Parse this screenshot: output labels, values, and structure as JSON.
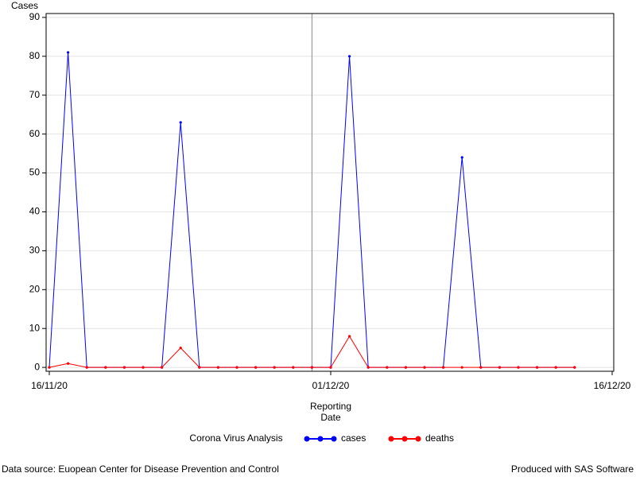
{
  "chart_data": {
    "type": "line",
    "y_label": "Cases",
    "x_label": "Reporting Date",
    "legend_title": "Corona Virus Analysis",
    "x": [
      "16/11/20",
      "17/11/20",
      "18/11/20",
      "19/11/20",
      "20/11/20",
      "21/11/20",
      "22/11/20",
      "23/11/20",
      "24/11/20",
      "25/11/20",
      "26/11/20",
      "27/11/20",
      "28/11/20",
      "29/11/20",
      "30/11/20",
      "01/12/20",
      "02/12/20",
      "03/12/20",
      "04/12/20",
      "05/12/20",
      "06/12/20",
      "07/12/20",
      "08/12/20",
      "09/12/20",
      "10/12/20",
      "11/12/20",
      "12/12/20",
      "13/12/20",
      "14/12/20"
    ],
    "series": [
      {
        "name": "cases",
        "color": "#0000ff",
        "values": [
          0,
          81,
          0,
          0,
          0,
          0,
          0,
          63,
          0,
          0,
          0,
          0,
          0,
          0,
          0,
          0,
          80,
          0,
          0,
          0,
          0,
          0,
          54,
          0,
          0,
          0,
          0,
          0,
          0
        ]
      },
      {
        "name": "deaths",
        "color": "#ff0000",
        "values": [
          0,
          1,
          0,
          0,
          0,
          0,
          0,
          5,
          0,
          0,
          0,
          0,
          0,
          0,
          0,
          0,
          8,
          0,
          0,
          0,
          0,
          0,
          0,
          0,
          0,
          0,
          0,
          0,
          0
        ]
      }
    ],
    "xlim": [
      "16/11/20",
      "16/12/20"
    ],
    "xticks": [
      "16/11/20",
      "01/12/20",
      "16/12/20"
    ],
    "ylim": [
      -1,
      91
    ],
    "yticks": [
      0,
      10,
      20,
      30,
      40,
      50,
      60,
      70,
      80,
      90
    ],
    "reference_line_x": "30/11/20",
    "grid": true,
    "footnote_left": "Data source: Euopean Center for Disease Prevention and Control",
    "footnote_right": "Produced with SAS Software"
  }
}
